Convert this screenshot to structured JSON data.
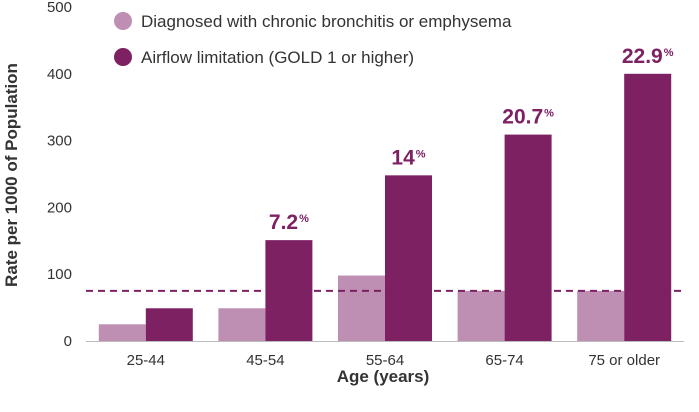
{
  "chart_data": {
    "type": "bar",
    "xlabel": "Age (years)",
    "ylabel": "Rate per 1000 of Population",
    "ylim": [
      0,
      500
    ],
    "yticks": [
      0,
      100,
      200,
      300,
      400,
      500
    ],
    "grid": false,
    "legend_position": "top-left",
    "categories": [
      "25-44",
      "45-54",
      "55-64",
      "65-74",
      "75 or older"
    ],
    "series": [
      {
        "name": "Diagnosed with chronic bronchitis or emphysema",
        "color": "#bf8fb3",
        "values": [
          25,
          49,
          98,
          75,
          75
        ]
      },
      {
        "name": "Airflow limitation (GOLD 1 or higher)",
        "color": "#7d2163",
        "values": [
          49,
          151,
          248,
          309,
          400
        ],
        "labels": [
          "",
          "7.2",
          "14",
          "20.7",
          "22.9"
        ],
        "label_suffix": "%"
      }
    ],
    "reference_line": {
      "value": 75,
      "style": "dashed",
      "color": "#7d2163"
    }
  }
}
